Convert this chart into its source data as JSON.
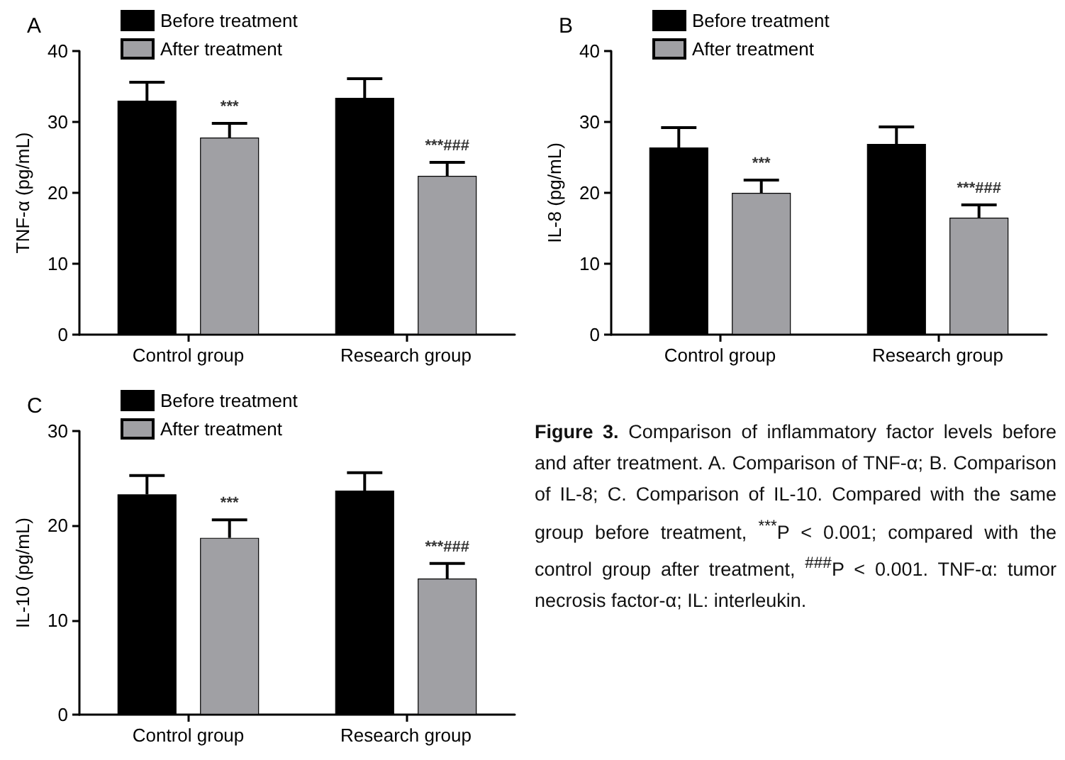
{
  "chart_data": [
    {
      "type": "bar",
      "title": "A",
      "ylabel": "TNF-α (pg/mL)",
      "categories": [
        "Control group",
        "Research group"
      ],
      "ylim": [
        0,
        40
      ],
      "yticks": [
        0,
        10,
        20,
        30,
        40
      ],
      "grid": false,
      "legend": "top left",
      "series": [
        {
          "name": "Before treatment",
          "color": "#000000",
          "values": [
            33.0,
            33.4
          ],
          "errors": [
            2.6,
            2.7
          ]
        },
        {
          "name": "After treatment",
          "color": "#a0a0a4",
          "values": [
            27.8,
            22.4
          ],
          "errors": [
            2.0,
            1.9
          ]
        }
      ],
      "annotations": [
        "***",
        "***###"
      ]
    },
    {
      "type": "bar",
      "title": "B",
      "ylabel": "IL-8 (pg/mL)",
      "categories": [
        "Control group",
        "Research group"
      ],
      "ylim": [
        0,
        40
      ],
      "yticks": [
        0,
        10,
        20,
        30,
        40
      ],
      "grid": false,
      "legend": "top left",
      "series": [
        {
          "name": "Before treatment",
          "color": "#000000",
          "values": [
            26.4,
            26.9
          ],
          "errors": [
            2.8,
            2.4
          ]
        },
        {
          "name": "After treatment",
          "color": "#a0a0a4",
          "values": [
            20.0,
            16.5
          ],
          "errors": [
            1.8,
            1.8
          ]
        }
      ],
      "annotations": [
        "***",
        "***###"
      ]
    },
    {
      "type": "bar",
      "title": "C",
      "ylabel": "IL-10 (pg/mL)",
      "categories": [
        "Control group",
        "Research group"
      ],
      "ylim": [
        0,
        30
      ],
      "yticks": [
        0,
        10,
        20,
        30
      ],
      "grid": false,
      "legend": "top left",
      "series": [
        {
          "name": "Before treatment",
          "color": "#000000",
          "values": [
            23.3,
            23.7
          ],
          "errors": [
            2.0,
            1.9
          ]
        },
        {
          "name": "After treatment",
          "color": "#a0a0a4",
          "values": [
            18.7,
            14.4
          ],
          "errors": [
            1.9,
            1.6
          ]
        }
      ],
      "annotations": [
        "***",
        "***###"
      ]
    },
    {
      "type": "other",
      "title": "Figure 3.",
      "annotations": [
        "Comparison of inflammatory factor levels before and after treatment. A. Comparison of TNF-α; B. Comparison of IL-8; C. Comparison of IL-10. Compared with the same group before treatment, $^{***}$P < 0.001; compared with the control group after treatment, $^{###}$P < 0.001. TNF-α: tumor necrosis factor-α; IL: interleukin."
      ]
    }
  ]
}
